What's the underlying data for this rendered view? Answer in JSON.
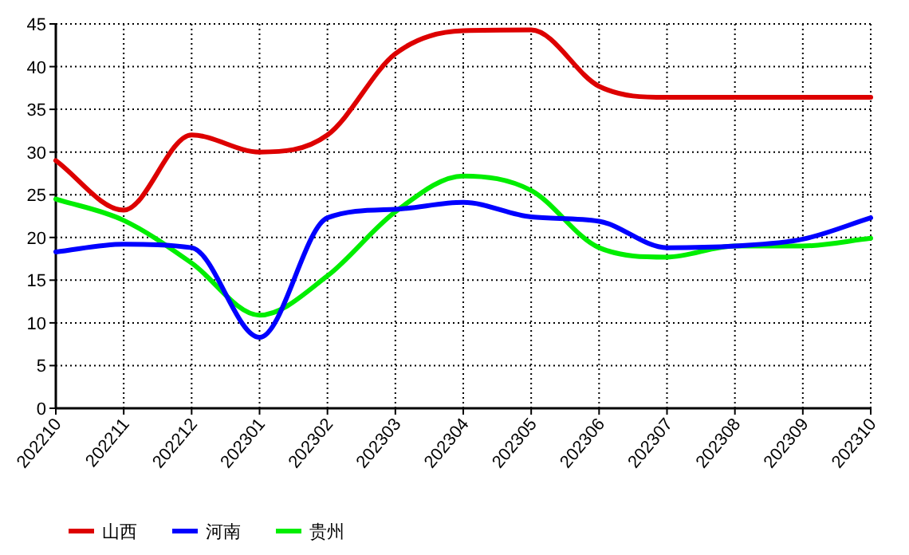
{
  "chart_data": {
    "type": "line",
    "categories": [
      "202210",
      "202211",
      "202212",
      "202301",
      "202302",
      "202303",
      "202304",
      "202305",
      "202306",
      "202307",
      "202308",
      "202309",
      "202310"
    ],
    "series": [
      {
        "name": "山西",
        "color": "#dd0000",
        "values": [
          29,
          23.2,
          32,
          30,
          32,
          41.5,
          44.2,
          44.3,
          37.7,
          36.4,
          36.4,
          36.4,
          36.4
        ]
      },
      {
        "name": "河南",
        "color": "#0000ff",
        "values": [
          18.3,
          19.2,
          18.8,
          8.3,
          22.3,
          23.3,
          24.1,
          22.4,
          21.9,
          18.8,
          19.0,
          19.8,
          22.3
        ]
      },
      {
        "name": "贵州",
        "color": "#00ee00",
        "values": [
          24.5,
          22,
          17,
          10.9,
          15.5,
          23,
          27.2,
          25.5,
          18.8,
          17.7,
          19.0,
          19.0,
          19.9
        ]
      }
    ],
    "ylim": [
      0,
      45
    ],
    "yticks": [
      0,
      5,
      10,
      15,
      20,
      25,
      30,
      35,
      40,
      45
    ],
    "grid": true,
    "legend": "bottom left",
    "marker": "none",
    "line_style": "solid"
  }
}
